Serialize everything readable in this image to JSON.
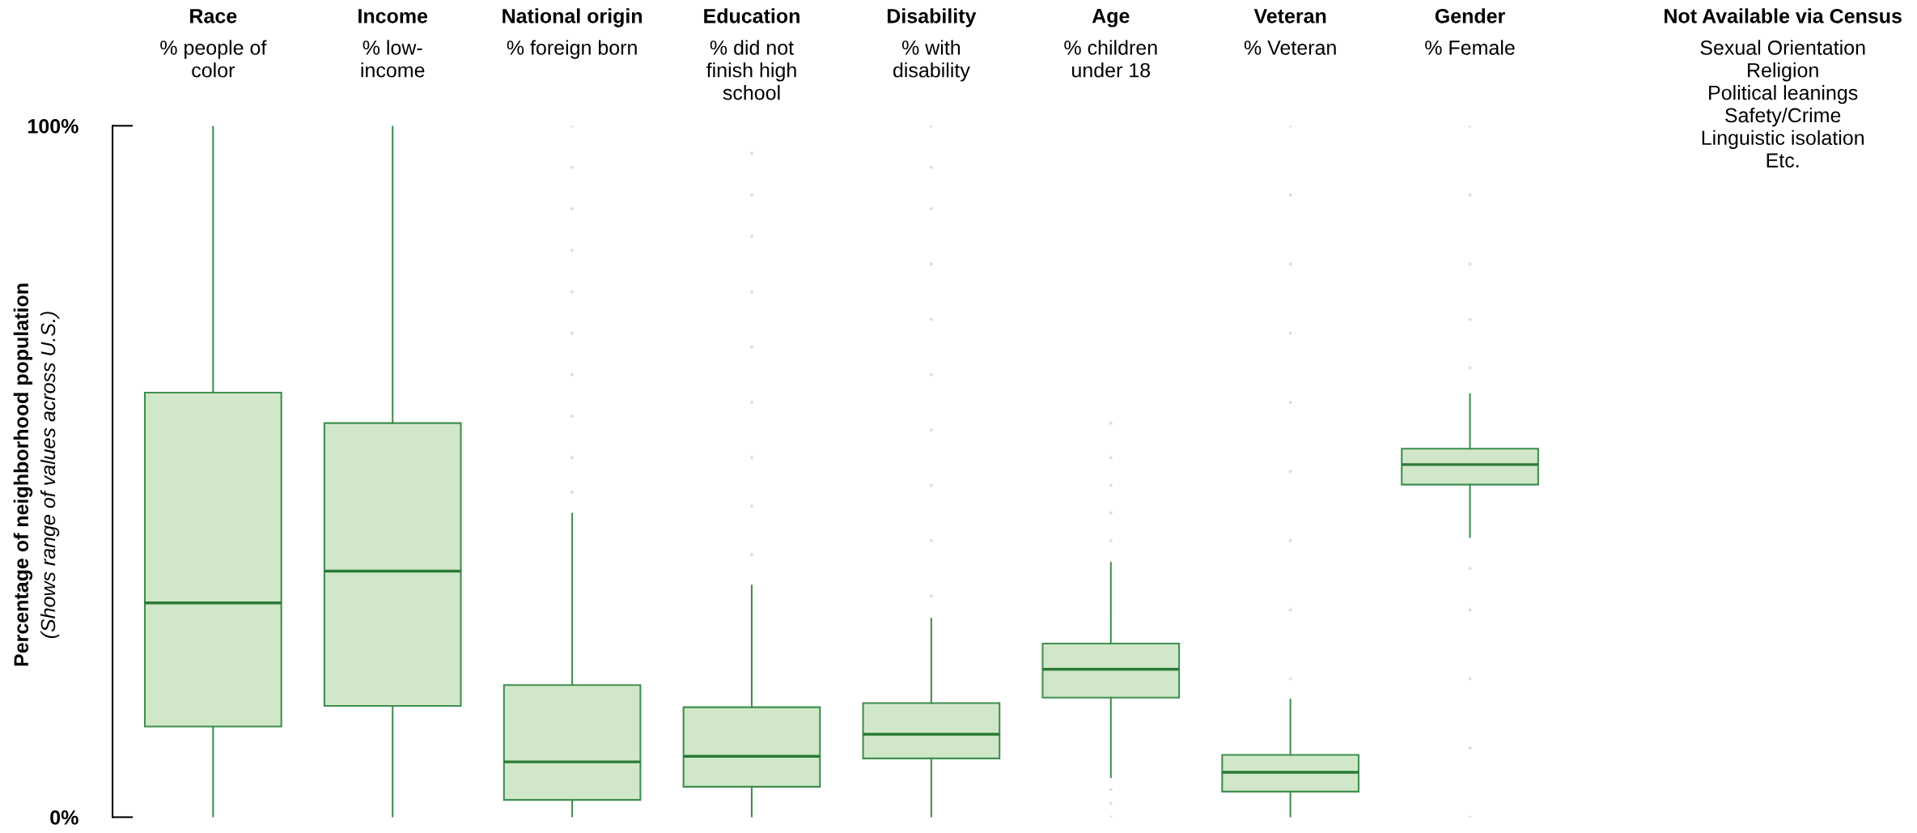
{
  "chart_data": {
    "type": "box",
    "categories": [
      "Race\n% people of\ncolor",
      "Income\n% low-\nincome",
      "National origin\n% foreign born",
      "Education\n% did not\nfinish high\nschool",
      "Disability\n% with\ndisability",
      "Age\n% children\nunder 18",
      "Veteran\n% Veteran",
      "Gender\n% Female"
    ],
    "ylabel": "Percentage of neighborhood population\n(Shows range of values across U.S.)",
    "ylim": [
      0,
      100
    ],
    "yticks": [
      {
        "value": 0,
        "label": "0%"
      },
      {
        "value": 100,
        "label": "100%"
      }
    ],
    "grid": false,
    "annotations": [
      "Not Available via Census\nSexual Orientation\nReligion\nPolitical leanings\nSafety/Crime\nLinguistic isolation\nEtc."
    ],
    "series": [
      {
        "color": "#d0e7c9",
        "boxes": [
          {
            "low": 0,
            "q1": 13.1,
            "median": 31,
            "q3": 61.4,
            "high": 100
          },
          {
            "low": 0,
            "q1": 16.1,
            "median": 35.6,
            "q3": 57,
            "high": 100
          },
          {
            "low": 0,
            "q1": 2.5,
            "median": 8,
            "q3": 19.1,
            "high": 43.9,
            "outliers": [
              47,
              52,
              58,
              64,
              70,
              76,
              82,
              88,
              94,
              100
            ]
          },
          {
            "low": 0,
            "q1": 4.4,
            "median": 8.8,
            "q3": 15.9,
            "high": 33.5,
            "outliers": [
              38,
              45,
              52,
              60,
              68,
              76,
              84,
              90,
              96
            ]
          },
          {
            "low": 0,
            "q1": 8.5,
            "median": 12,
            "q3": 16.5,
            "high": 28.7,
            "outliers": [
              32,
              40,
              48,
              56,
              64,
              72,
              80,
              88,
              94,
              100
            ]
          },
          {
            "low": 5.8,
            "q1": 17.3,
            "median": 21.4,
            "q3": 25.1,
            "high": 36.8,
            "outliers": [
              0,
              2,
              4,
              40,
              44,
              48,
              52,
              57
            ]
          },
          {
            "low": 0,
            "q1": 3.7,
            "median": 6.5,
            "q3": 9,
            "high": 17,
            "outliers": [
              20,
              30,
              40,
              50,
              60,
              70,
              80,
              90,
              100
            ]
          },
          {
            "low": 40.5,
            "q1": 48.1,
            "median": 51,
            "q3": 53.3,
            "high": 61.2,
            "outliers": [
              0,
              10,
              20,
              30,
              36,
              65,
              72,
              80,
              90,
              100
            ]
          }
        ]
      }
    ]
  }
}
